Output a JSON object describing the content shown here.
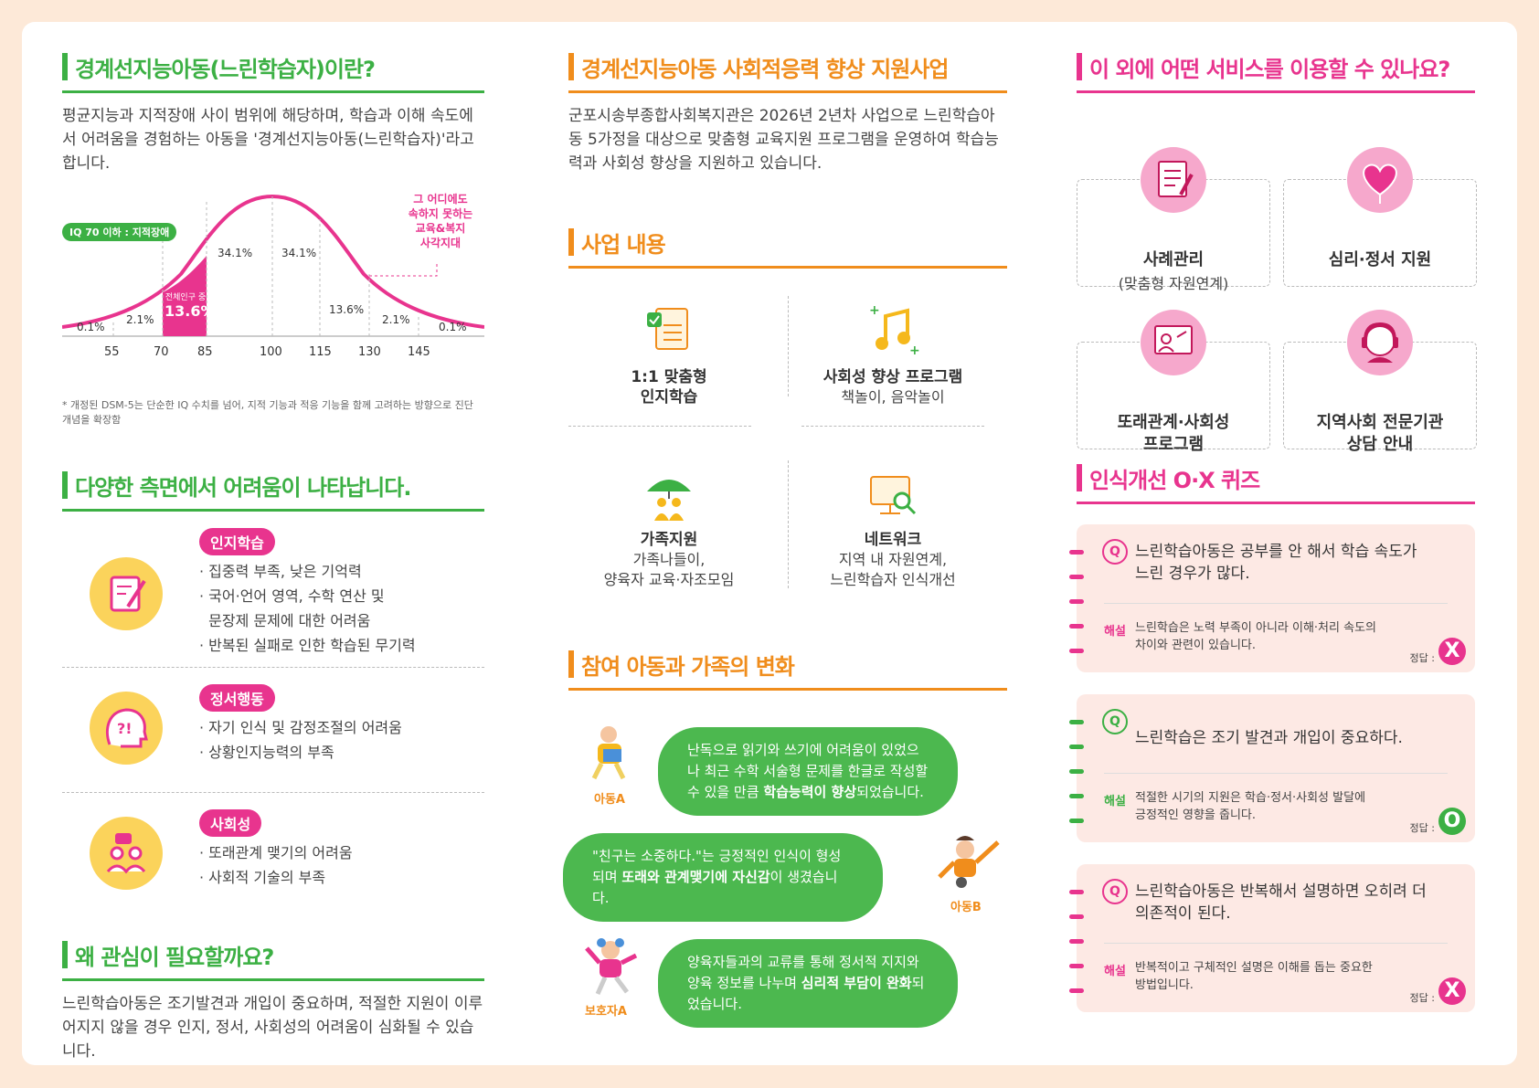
{
  "col1": {
    "title1": "경계선지능아동(느린학습자)이란?",
    "intro": "평균지능과 지적장애 사이 범위에 해당하며, 학습과 이해 속도에서 어려움을 경험하는 아동을 '경계선지능아동(느린학습자)'라고 합니다.",
    "chart": {
      "iq_badge": "IQ 70 이하 : 지적장애",
      "callout": [
        "그 어디에도",
        "속하지 못하는",
        "교육&복지",
        "사각지대"
      ],
      "highlight_small": "전체인구 중",
      "highlight_big": "13.6%",
      "pct_left_034": "34.1%",
      "pct_right_034": "34.1%",
      "pct_136": "13.6%",
      "pct_21_left": "2.1%",
      "pct_21_right": "2.1%",
      "pct_01_left": "0.1%",
      "pct_01_right": "0.1%",
      "ticks": [
        "55",
        "70",
        "85",
        "100",
        "115",
        "130",
        "145"
      ]
    },
    "note": "* 개정된 DSM-5는 단순한 IQ 수치를 넘어, 지적 기능과 적응 기능을 함께 고려하는 방향으로 진단 개념을 확장함",
    "title2": "다양한 측면에서 어려움이 나타납니다.",
    "difficulties": [
      {
        "tag": "인지학습",
        "items": [
          "· 집중력 부족, 낮은 기억력",
          "· 국어·언어 영역, 수학 연산 및",
          "  문장제 문제에 대한 어려움",
          "· 반복된 실패로 인한 학습된 무기력"
        ]
      },
      {
        "tag": "정서행동",
        "items": [
          "· 자기 인식 및 감정조절의 어려움",
          "· 상황인지능력의 부족"
        ]
      },
      {
        "tag": "사회성",
        "items": [
          "· 또래관계 맺기의 어려움",
          "· 사회적 기술의 부족"
        ]
      }
    ],
    "title3": "왜 관심이 필요할까요?",
    "why": "느린학습아동은 조기발견과 개입이 중요하며, 적절한 지원이 이루어지지 않을 경우 인지, 정서, 사회성의 어려움이 심화될 수 있습니다."
  },
  "col2": {
    "title1": "경계선지능아동 사회적응력 향상 지원사업",
    "intro": "군포시송부종합사회복지관은 2026년 2년차 사업으로 느린학습아동 5가정을 대상으로 맞춤형 교육지원 프로그램을 운영하여 학습능력과 사회성 향상을 지원하고 있습니다.",
    "title2": "사업 내용",
    "biz": [
      {
        "title": "1:1 맞춤형\n인지학습",
        "desc": ""
      },
      {
        "title": "사회성 향상 프로그램",
        "desc": "책놀이, 음악놀이"
      },
      {
        "title": "가족지원",
        "desc": "가족나들이,\n양육자 교육·자조모임"
      },
      {
        "title": "네트워크",
        "desc": "지역 내 자원연계,\n느린학습자 인식개선"
      }
    ],
    "title3": "참여 아동과 가족의 변화",
    "changes": [
      {
        "label": "아동A",
        "pre": "난독으로 읽기와 쓰기에 어려움이 있었으나 최근 수학 서술형 문제를 한글로 작성할 수 있을 만큼 ",
        "bold": "학습능력이 향상",
        "post": "되었습니다."
      },
      {
        "label": "아동B",
        "pre": "\"친구는 소중하다.\"는 긍정적인 인식이 형성되며 ",
        "bold": "또래와 관계맺기에 자신감",
        "post": "이 생겼습니다."
      },
      {
        "label": "보호자A",
        "pre": "양육자들과의 교류를 통해 정서적 지지와 양육 정보를 나누며 ",
        "bold": "심리적 부담이 완화",
        "post": "되었습니다."
      }
    ]
  },
  "col3": {
    "title1": "이 외에 어떤 서비스를 이용할 수 있나요?",
    "services": [
      {
        "title": "사례관리",
        "desc": "(맞춤형 자원연계)",
        "icon": "checklist-icon"
      },
      {
        "title": "심리·정서 지원",
        "desc": "",
        "icon": "heart-icon"
      },
      {
        "title": "또래관계·사회성\n프로그램",
        "desc": "",
        "icon": "presentation-icon"
      },
      {
        "title": "지역사회 전문기관\n상담 안내",
        "desc": "",
        "icon": "headset-icon"
      }
    ],
    "title2": "인식개선 O·X 퀴즈",
    "quiz": [
      {
        "q": "느린학습아동은 공부를 안 해서 학습 속도가\n느린 경우가 많다.",
        "exp_label": "해설",
        "exp": "느린학습은 노력 부족이 아니라 이해·처리 속도의\n차이와 관련이 있습니다.",
        "ans_label": "정답 :",
        "ans": "X",
        "color": "#e8348e"
      },
      {
        "q": "느린학습은 조기 발견과 개입이 중요하다.",
        "exp_label": "해설",
        "exp": "적절한 시기의 지원은 학습·정서·사회성 발달에\n긍정적인 영향을 줍니다.",
        "ans_label": "정답 :",
        "ans": "O",
        "color": "#3cb044"
      },
      {
        "q": "느린학습아동은 반복해서 설명하면 오히려 더\n의존적이 된다.",
        "exp_label": "해설",
        "exp": "반복적이고 구체적인 설명은 이해를 돕는 중요한\n방법입니다.",
        "ans_label": "정답 :",
        "ans": "X",
        "color": "#e8348e"
      }
    ]
  }
}
